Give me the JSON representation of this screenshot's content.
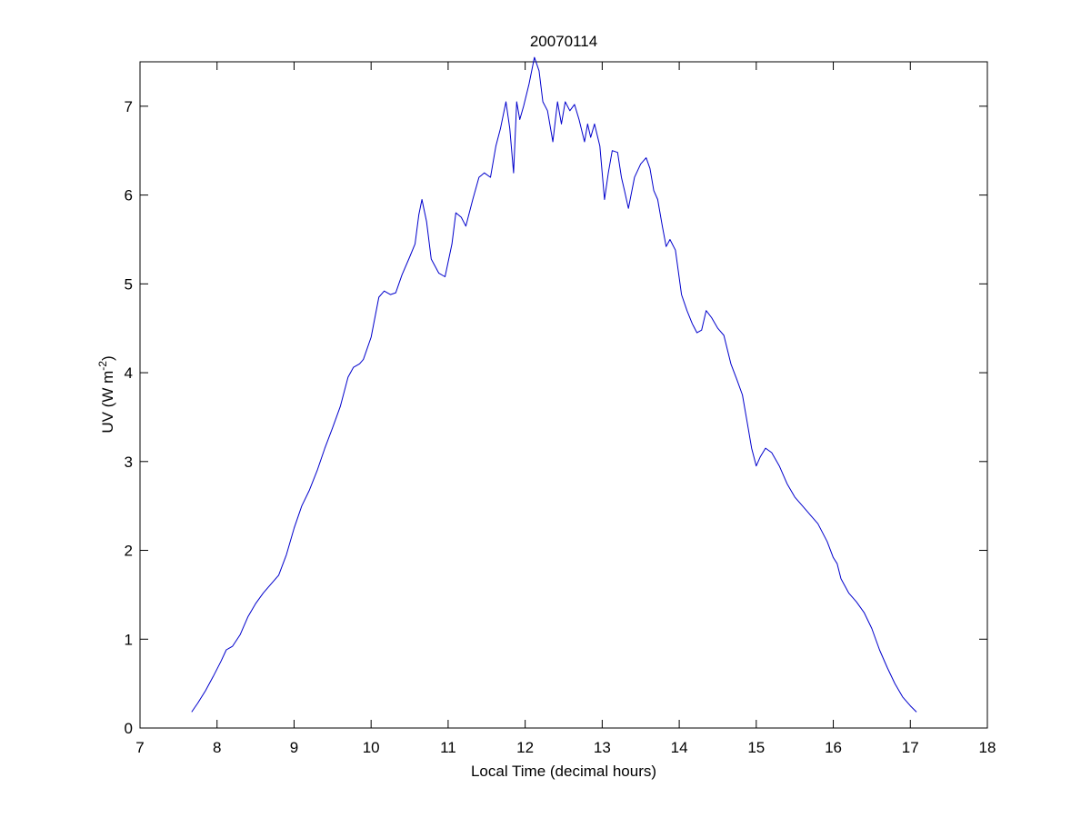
{
  "chart_data": {
    "type": "line",
    "title": "20070114",
    "xlabel": "Local Time (decimal hours)",
    "ylabel": {
      "prefix": "UV (W m",
      "superscript": "-2",
      "suffix": ")"
    },
    "xlim": [
      7,
      18
    ],
    "ylim": [
      0,
      7.5
    ],
    "xticks": [
      7,
      8,
      9,
      10,
      11,
      12,
      13,
      14,
      15,
      16,
      17,
      18
    ],
    "yticks": [
      0,
      1,
      2,
      3,
      4,
      5,
      6,
      7
    ],
    "grid": false,
    "legend": "none",
    "series": [
      {
        "color": "#0000cc",
        "x": [
          7.67,
          7.75,
          7.85,
          7.95,
          8.05,
          8.12,
          8.2,
          8.3,
          8.4,
          8.5,
          8.6,
          8.7,
          8.8,
          8.9,
          9.0,
          9.1,
          9.2,
          9.3,
          9.4,
          9.5,
          9.6,
          9.7,
          9.77,
          9.85,
          9.9,
          10.0,
          10.1,
          10.17,
          10.25,
          10.32,
          10.4,
          10.5,
          10.57,
          10.62,
          10.66,
          10.72,
          10.78,
          10.88,
          10.96,
          11.05,
          11.1,
          11.17,
          11.23,
          11.32,
          11.4,
          11.47,
          11.55,
          11.62,
          11.68,
          11.75,
          11.8,
          11.85,
          11.89,
          11.93,
          11.98,
          12.05,
          12.12,
          12.18,
          12.23,
          12.29,
          12.36,
          12.42,
          12.47,
          12.52,
          12.58,
          12.64,
          12.7,
          12.77,
          12.81,
          12.85,
          12.9,
          12.97,
          13.03,
          13.08,
          13.13,
          13.2,
          13.25,
          13.29,
          13.34,
          13.42,
          13.5,
          13.57,
          13.62,
          13.67,
          13.72,
          13.78,
          13.83,
          13.88,
          13.95,
          14.03,
          14.1,
          14.17,
          14.23,
          14.29,
          14.35,
          14.42,
          14.5,
          14.58,
          14.67,
          14.75,
          14.82,
          14.88,
          14.94,
          15.0,
          15.05,
          15.12,
          15.2,
          15.3,
          15.4,
          15.5,
          15.6,
          15.7,
          15.8,
          15.92,
          16.0,
          16.05,
          16.1,
          16.2,
          16.3,
          16.4,
          16.5,
          16.6,
          16.7,
          16.8,
          16.9,
          17.0,
          17.08
        ],
        "y": [
          0.18,
          0.28,
          0.42,
          0.58,
          0.75,
          0.88,
          0.92,
          1.05,
          1.25,
          1.4,
          1.52,
          1.62,
          1.72,
          1.95,
          2.25,
          2.5,
          2.68,
          2.9,
          3.15,
          3.38,
          3.62,
          3.95,
          4.06,
          4.1,
          4.15,
          4.4,
          4.85,
          4.92,
          4.88,
          4.9,
          5.1,
          5.3,
          5.45,
          5.78,
          5.95,
          5.7,
          5.28,
          5.12,
          5.08,
          5.45,
          5.8,
          5.75,
          5.65,
          5.95,
          6.2,
          6.25,
          6.2,
          6.55,
          6.75,
          7.05,
          6.75,
          6.25,
          7.05,
          6.85,
          7.0,
          7.25,
          7.55,
          7.4,
          7.05,
          6.95,
          6.6,
          7.05,
          6.8,
          7.05,
          6.95,
          7.02,
          6.85,
          6.6,
          6.8,
          6.65,
          6.8,
          6.55,
          5.95,
          6.25,
          6.5,
          6.48,
          6.2,
          6.05,
          5.85,
          6.2,
          6.35,
          6.42,
          6.3,
          6.05,
          5.95,
          5.65,
          5.42,
          5.5,
          5.38,
          4.88,
          4.7,
          4.55,
          4.45,
          4.48,
          4.7,
          4.62,
          4.5,
          4.42,
          4.1,
          3.92,
          3.75,
          3.45,
          3.15,
          2.95,
          3.05,
          3.15,
          3.1,
          2.95,
          2.75,
          2.6,
          2.5,
          2.4,
          2.3,
          2.1,
          1.92,
          1.85,
          1.68,
          1.52,
          1.42,
          1.3,
          1.12,
          0.88,
          0.68,
          0.5,
          0.35,
          0.25,
          0.18
        ]
      }
    ]
  }
}
